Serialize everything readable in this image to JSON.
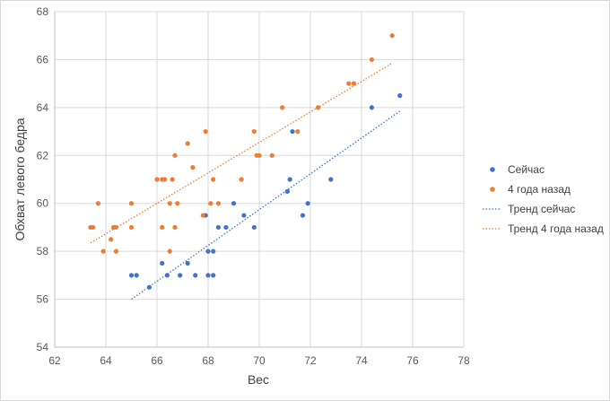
{
  "chart_data": {
    "type": "scatter",
    "title": "",
    "xlabel": "Вес",
    "ylabel": "Обхват левого бедра",
    "xlim": [
      62,
      78
    ],
    "ylim": [
      54,
      68
    ],
    "x_ticks": [
      62,
      64,
      66,
      68,
      70,
      72,
      74,
      76,
      78
    ],
    "y_ticks": [
      54,
      56,
      58,
      60,
      62,
      64,
      66,
      68
    ],
    "grid": true,
    "legend_position": "right",
    "series": [
      {
        "name": "Сейчас",
        "kind": "points",
        "color": "#4472C4",
        "points": [
          [
            65.0,
            57.0
          ],
          [
            65.2,
            57.0
          ],
          [
            65.7,
            56.5
          ],
          [
            66.2,
            57.5
          ],
          [
            66.4,
            57.0
          ],
          [
            66.9,
            57.0
          ],
          [
            67.2,
            57.5
          ],
          [
            67.5,
            57.0
          ],
          [
            67.9,
            59.5
          ],
          [
            68.0,
            57.0
          ],
          [
            68.0,
            58.0
          ],
          [
            68.2,
            57.0
          ],
          [
            68.2,
            58.0
          ],
          [
            68.4,
            59.0
          ],
          [
            68.7,
            59.0
          ],
          [
            69.0,
            60.0
          ],
          [
            69.4,
            59.5
          ],
          [
            69.8,
            59.0
          ],
          [
            71.1,
            60.5
          ],
          [
            71.2,
            61.0
          ],
          [
            71.3,
            63.0
          ],
          [
            71.7,
            59.5
          ],
          [
            71.9,
            60.0
          ],
          [
            72.8,
            61.0
          ],
          [
            74.4,
            64.0
          ],
          [
            75.5,
            64.5
          ]
        ]
      },
      {
        "name": "4 года назад",
        "kind": "points",
        "color": "#ED7D31",
        "points": [
          [
            63.4,
            59.0
          ],
          [
            63.5,
            59.0
          ],
          [
            63.7,
            60.0
          ],
          [
            63.9,
            58.0
          ],
          [
            64.2,
            58.5
          ],
          [
            64.3,
            59.0
          ],
          [
            64.4,
            58.0
          ],
          [
            64.4,
            59.0
          ],
          [
            65.0,
            59.0
          ],
          [
            65.0,
            60.0
          ],
          [
            66.0,
            61.0
          ],
          [
            66.2,
            59.0
          ],
          [
            66.2,
            61.0
          ],
          [
            66.3,
            61.0
          ],
          [
            66.5,
            58.0
          ],
          [
            66.5,
            60.0
          ],
          [
            66.6,
            61.0
          ],
          [
            66.7,
            59.0
          ],
          [
            66.7,
            62.0
          ],
          [
            66.8,
            60.0
          ],
          [
            67.2,
            62.5
          ],
          [
            67.4,
            61.5
          ],
          [
            67.8,
            59.5
          ],
          [
            67.9,
            63.0
          ],
          [
            68.1,
            60.0
          ],
          [
            68.2,
            61.0
          ],
          [
            68.4,
            60.0
          ],
          [
            69.3,
            61.0
          ],
          [
            69.8,
            63.0
          ],
          [
            69.9,
            62.0
          ],
          [
            70.0,
            62.0
          ],
          [
            70.5,
            62.0
          ],
          [
            70.9,
            64.0
          ],
          [
            71.5,
            63.0
          ],
          [
            72.3,
            64.0
          ],
          [
            73.5,
            65.0
          ],
          [
            73.7,
            65.0
          ],
          [
            74.4,
            66.0
          ],
          [
            75.2,
            67.0
          ]
        ]
      },
      {
        "name": "Тренд сейчас",
        "kind": "trendline",
        "color": "#4472C4",
        "from": [
          65.0,
          56.0
        ],
        "to": [
          75.5,
          63.85
        ]
      },
      {
        "name": "Тренд 4 года назад",
        "kind": "trendline",
        "color": "#ED7D31",
        "from": [
          63.4,
          58.35
        ],
        "to": [
          75.2,
          65.85
        ]
      }
    ]
  }
}
